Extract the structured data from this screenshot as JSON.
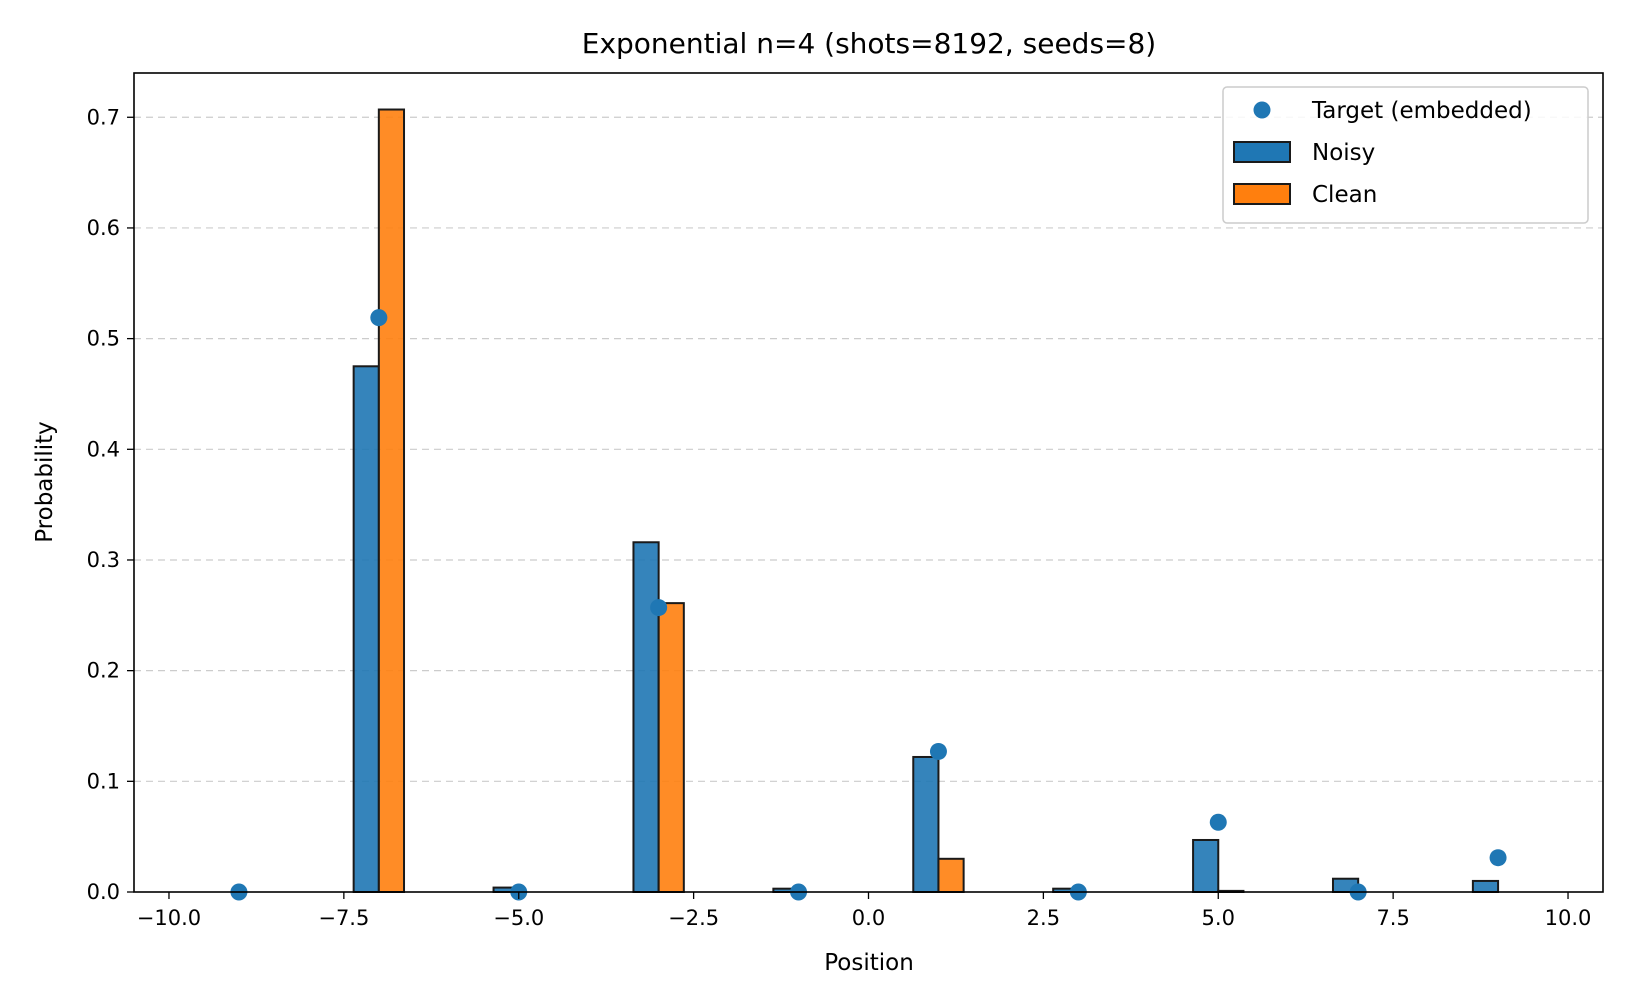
{
  "chart_data": {
    "type": "bar",
    "title": "Exponential n=4 (shots=8192, seeds=8)",
    "xlabel": "Position",
    "ylabel": "Probability",
    "xlim": [
      -10.5,
      10.5
    ],
    "ylim": [
      0,
      0.74
    ],
    "xticks": [
      -10.0,
      -7.5,
      -5.0,
      -2.5,
      0.0,
      2.5,
      5.0,
      7.5,
      10.0
    ],
    "xtick_labels": [
      "−10.0",
      "−7.5",
      "−5.0",
      "−2.5",
      "0.0",
      "2.5",
      "5.0",
      "7.5",
      "10.0"
    ],
    "yticks": [
      0.0,
      0.1,
      0.2,
      0.3,
      0.4,
      0.5,
      0.6,
      0.7
    ],
    "ytick_labels": [
      "0.0",
      "0.1",
      "0.2",
      "0.3",
      "0.4",
      "0.5",
      "0.6",
      "0.7"
    ],
    "grid": "y-dashed",
    "legend_position": "upper right",
    "bar_width": 0.36,
    "x": [
      -9,
      -7,
      -5,
      -3,
      -1,
      1,
      3,
      5,
      7,
      9
    ],
    "series": [
      {
        "name": "Noisy",
        "kind": "bar",
        "offset": -0.18,
        "color": "#1f77b4",
        "values": [
          0.0,
          0.475,
          0.004,
          0.316,
          0.003,
          0.122,
          0.003,
          0.047,
          0.012,
          0.01
        ]
      },
      {
        "name": "Clean",
        "kind": "bar",
        "offset": 0.18,
        "color": "#ff7f0e",
        "values": [
          0.0,
          0.707,
          0.0,
          0.261,
          0.0,
          0.03,
          0.0,
          0.001,
          0.0,
          0.0
        ]
      },
      {
        "name": "Target (embedded)",
        "kind": "scatter",
        "color": "#1f77b4",
        "values": [
          0.0,
          0.519,
          0.0,
          0.257,
          0.0,
          0.127,
          0.0,
          0.063,
          0.0,
          0.031
        ]
      }
    ],
    "legend": [
      {
        "label": "Target (embedded)",
        "kind": "marker",
        "color": "#1f77b4"
      },
      {
        "label": "Noisy",
        "kind": "patch",
        "color": "#1f77b4"
      },
      {
        "label": "Clean",
        "kind": "patch",
        "color": "#ff7f0e"
      }
    ]
  }
}
